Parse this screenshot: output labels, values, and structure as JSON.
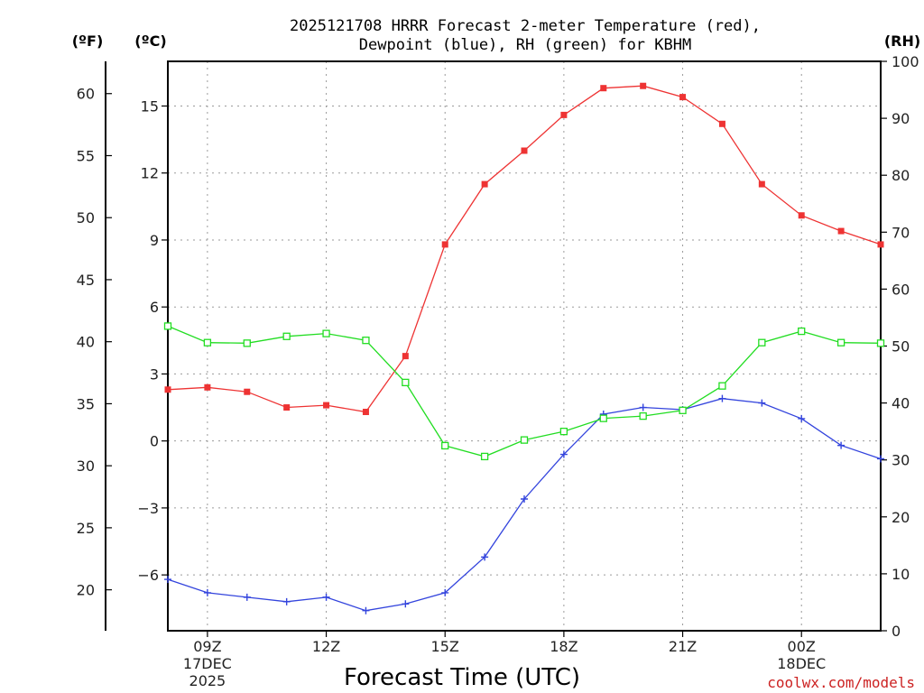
{
  "chart_data": {
    "type": "line",
    "title_line1": "2025121708 HRRR Forecast 2-meter Temperature (red),",
    "title_line2": "Dewpoint (blue), RH (green) for KBHM",
    "xlabel": "Forecast Time (UTC)",
    "credit": "coolwx.com/models",
    "units": {
      "fahrenheit": "(ºF)",
      "celsius": "(ºC)",
      "rh": "(RH)"
    },
    "x_hours": [
      8,
      9,
      10,
      11,
      12,
      13,
      14,
      15,
      16,
      17,
      18,
      19,
      20,
      21,
      22,
      23,
      24,
      25,
      26
    ],
    "xlim": [
      8,
      26
    ],
    "x_ticks": [
      {
        "hour": 9,
        "label": "09Z",
        "sub1": "17DEC",
        "sub2": "2025"
      },
      {
        "hour": 12,
        "label": "12Z",
        "sub1": "",
        "sub2": ""
      },
      {
        "hour": 15,
        "label": "15Z",
        "sub1": "",
        "sub2": ""
      },
      {
        "hour": 18,
        "label": "18Z",
        "sub1": "",
        "sub2": ""
      },
      {
        "hour": 21,
        "label": "21Z",
        "sub1": "",
        "sub2": ""
      },
      {
        "hour": 24,
        "label": "00Z",
        "sub1": "18DEC",
        "sub2": ""
      }
    ],
    "celsius_axis": {
      "ylim": [
        -8.5,
        17
      ],
      "ticks": [
        -6,
        -3,
        0,
        3,
        6,
        9,
        12,
        15
      ],
      "tick_labels": [
        "−6",
        "−3",
        "0",
        "3",
        "6",
        "9",
        "12",
        "15"
      ]
    },
    "fahrenheit_axis": {
      "ticks": [
        20,
        25,
        30,
        35,
        40,
        45,
        50,
        55,
        60
      ],
      "tick_labels": [
        "20",
        "25",
        "30",
        "35",
        "40",
        "45",
        "50",
        "55",
        "60"
      ]
    },
    "rh_axis": {
      "ylim": [
        0,
        100
      ],
      "ticks": [
        0,
        10,
        20,
        30,
        40,
        50,
        60,
        70,
        80,
        90,
        100
      ],
      "tick_labels": [
        "0",
        "10",
        "20",
        "30",
        "40",
        "50",
        "60",
        "70",
        "80",
        "90",
        "100"
      ]
    },
    "series": [
      {
        "name": "Temperature",
        "axis": "celsius",
        "color": "#ee3333",
        "marker": "filled-square",
        "values": [
          2.3,
          2.4,
          2.2,
          1.5,
          1.6,
          1.3,
          3.8,
          8.8,
          11.5,
          13.0,
          14.6,
          15.8,
          15.9,
          15.4,
          14.2,
          11.5,
          10.1,
          9.4,
          8.8
        ]
      },
      {
        "name": "Dewpoint",
        "axis": "celsius",
        "color": "#3344dd",
        "marker": "plus",
        "values": [
          -6.2,
          -6.8,
          -7.0,
          -7.2,
          -7.0,
          -7.6,
          -7.3,
          -6.8,
          -5.2,
          -2.6,
          -0.6,
          1.2,
          1.5,
          1.4,
          1.9,
          1.7,
          1.0,
          -0.2,
          -0.8
        ]
      },
      {
        "name": "RH",
        "axis": "rh",
        "color": "#22dd22",
        "marker": "open-square",
        "values": [
          53.5,
          50.6,
          50.5,
          51.7,
          52.2,
          51.0,
          43.6,
          32.5,
          30.6,
          33.5,
          35.0,
          37.3,
          37.7,
          38.7,
          43.0,
          50.6,
          52.6,
          50.6,
          50.5
        ]
      }
    ]
  }
}
